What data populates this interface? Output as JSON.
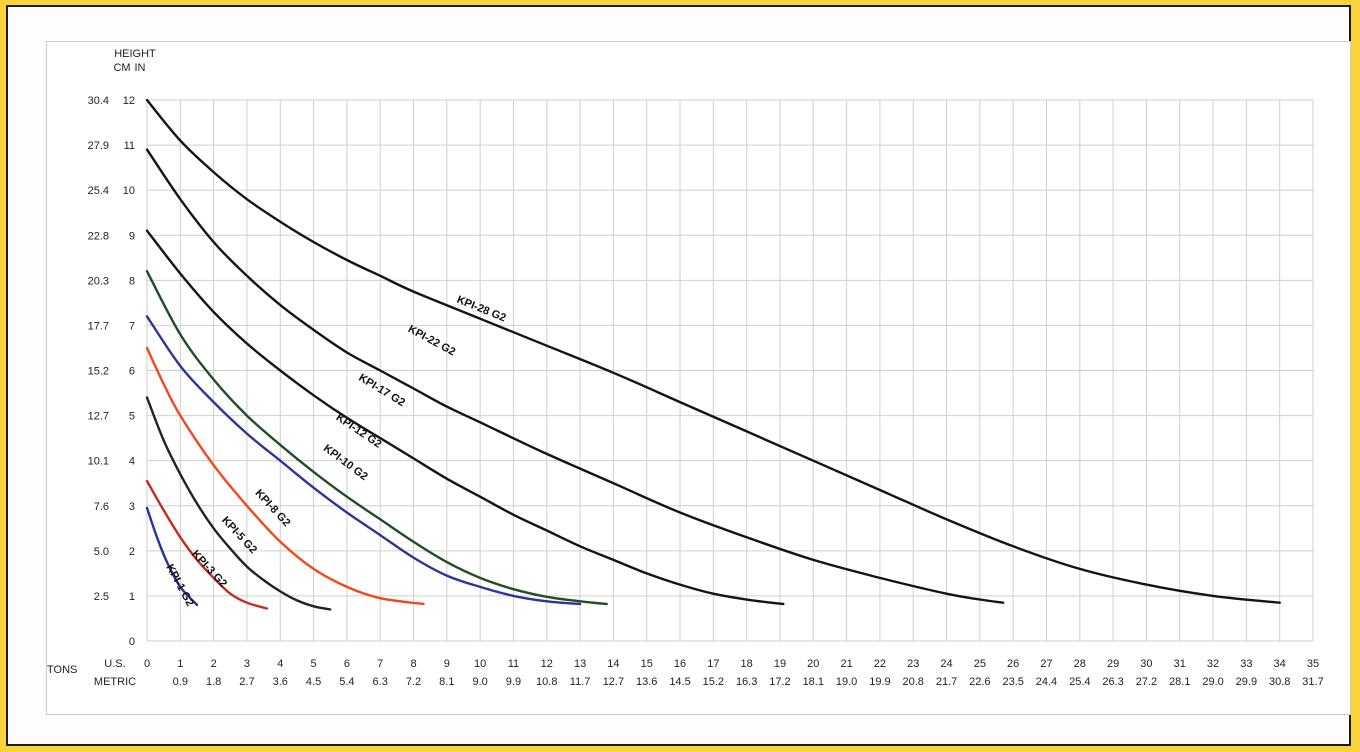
{
  "chart_data": {
    "type": "line",
    "y_header": "HEIGHT",
    "y_units": [
      "CM",
      "IN"
    ],
    "y_ticks_in": [
      0,
      1,
      2,
      3,
      4,
      5,
      6,
      7,
      8,
      9,
      10,
      11,
      12
    ],
    "y_ticks_cm": [
      "",
      "2.5",
      "5.0",
      "7.6",
      "10.1",
      "12.7",
      "15.2",
      "17.7",
      "20.3",
      "22.8",
      "25.4",
      "27.9",
      "30.4"
    ],
    "x_title": "TONS",
    "x_row_labels": [
      "U.S.",
      "METRIC"
    ],
    "x_ticks_us": [
      0,
      1,
      2,
      3,
      4,
      5,
      6,
      7,
      8,
      9,
      10,
      11,
      12,
      13,
      14,
      15,
      16,
      17,
      18,
      19,
      20,
      21,
      22,
      23,
      24,
      25,
      26,
      27,
      28,
      29,
      30,
      31,
      32,
      33,
      34,
      35
    ],
    "x_ticks_metric": [
      "",
      "0.9",
      "1.8",
      "2.7",
      "3.6",
      "4.5",
      "5.4",
      "6.3",
      "7.2",
      "8.1",
      "9.0",
      "9.9",
      "10.8",
      "11.7",
      "12.7",
      "13.6",
      "14.5",
      "15.2",
      "16.3",
      "17.2",
      "18.1",
      "19.0",
      "19.9",
      "20.8",
      "21.7",
      "22.6",
      "23.5",
      "24.4",
      "25.4",
      "26.3",
      "27.2",
      "28.1",
      "29.0",
      "29.9",
      "30.8",
      "31.7"
    ],
    "xlim": [
      0,
      35
    ],
    "ylim": [
      0,
      12
    ],
    "grid": true,
    "series": [
      {
        "name": "KPI-1 G2",
        "color": "#2b2f9e",
        "points": [
          [
            0,
            2.95
          ],
          [
            0.3,
            2.3
          ],
          [
            0.6,
            1.75
          ],
          [
            1.0,
            1.2
          ],
          [
            1.5,
            0.8
          ]
        ],
        "label_at": [
          0.9,
          1.2
        ]
      },
      {
        "name": "KPI-3 G2",
        "color": "#c62b20",
        "points": [
          [
            0,
            3.55
          ],
          [
            0.5,
            2.9
          ],
          [
            1.0,
            2.3
          ],
          [
            1.5,
            1.8
          ],
          [
            2.0,
            1.4
          ],
          [
            2.5,
            1.05
          ],
          [
            3.0,
            0.85
          ],
          [
            3.6,
            0.72
          ]
        ],
        "label_at": [
          1.8,
          1.55
        ]
      },
      {
        "name": "KPI-5 G2",
        "color": "#222222",
        "points": [
          [
            0,
            5.4
          ],
          [
            0.5,
            4.45
          ],
          [
            1.0,
            3.7
          ],
          [
            1.5,
            3.05
          ],
          [
            2.0,
            2.5
          ],
          [
            2.5,
            2.05
          ],
          [
            3.0,
            1.65
          ],
          [
            3.5,
            1.35
          ],
          [
            4.0,
            1.1
          ],
          [
            4.5,
            0.9
          ],
          [
            5.0,
            0.77
          ],
          [
            5.5,
            0.7
          ]
        ],
        "label_at": [
          2.7,
          2.3
        ]
      },
      {
        "name": "KPI-8 G2",
        "color": "#ef4a1c",
        "points": [
          [
            0,
            6.5
          ],
          [
            0.5,
            5.7
          ],
          [
            1.0,
            5.0
          ],
          [
            2.0,
            3.9
          ],
          [
            3.0,
            3.0
          ],
          [
            4.0,
            2.2
          ],
          [
            5.0,
            1.6
          ],
          [
            6.0,
            1.2
          ],
          [
            7.0,
            0.95
          ],
          [
            8.3,
            0.82
          ]
        ],
        "label_at": [
          3.7,
          2.9
        ]
      },
      {
        "name": "KPI-10 G2",
        "color": "#2e3499",
        "points": [
          [
            0,
            7.2
          ],
          [
            1.0,
            6.1
          ],
          [
            2.0,
            5.3
          ],
          [
            3.0,
            4.6
          ],
          [
            4.0,
            4.0
          ],
          [
            5.0,
            3.4
          ],
          [
            6.0,
            2.85
          ],
          [
            7.0,
            2.35
          ],
          [
            8.0,
            1.85
          ],
          [
            9.0,
            1.45
          ],
          [
            10.0,
            1.2
          ],
          [
            11.0,
            1.0
          ],
          [
            12.0,
            0.88
          ],
          [
            13.0,
            0.82
          ]
        ],
        "label_at": [
          5.9,
          3.9
        ]
      },
      {
        "name": "KPI-12 G2",
        "color": "#214d25",
        "points": [
          [
            0,
            8.2
          ],
          [
            1.0,
            6.8
          ],
          [
            2.0,
            5.8
          ],
          [
            3.0,
            5.0
          ],
          [
            4.0,
            4.35
          ],
          [
            5.0,
            3.75
          ],
          [
            6.0,
            3.2
          ],
          [
            7.0,
            2.7
          ],
          [
            8.0,
            2.2
          ],
          [
            9.0,
            1.75
          ],
          [
            10.0,
            1.4
          ],
          [
            11.0,
            1.15
          ],
          [
            12.0,
            0.98
          ],
          [
            13.0,
            0.88
          ],
          [
            13.8,
            0.82
          ]
        ],
        "label_at": [
          6.3,
          4.6
        ]
      },
      {
        "name": "KPI-17 G2",
        "color": "#141414",
        "points": [
          [
            0,
            9.1
          ],
          [
            1.0,
            8.15
          ],
          [
            2.0,
            7.3
          ],
          [
            3.0,
            6.6
          ],
          [
            4.0,
            6.0
          ],
          [
            5.0,
            5.45
          ],
          [
            6.0,
            4.95
          ],
          [
            7.0,
            4.5
          ],
          [
            8.0,
            4.05
          ],
          [
            9.0,
            3.6
          ],
          [
            10.0,
            3.2
          ],
          [
            11.0,
            2.8
          ],
          [
            12.0,
            2.45
          ],
          [
            13.0,
            2.1
          ],
          [
            14.0,
            1.8
          ],
          [
            15.0,
            1.5
          ],
          [
            16.0,
            1.25
          ],
          [
            17.0,
            1.05
          ],
          [
            18.0,
            0.92
          ],
          [
            19.1,
            0.82
          ]
        ],
        "label_at": [
          7.0,
          5.5
        ]
      },
      {
        "name": "KPI-22 G2",
        "color": "#141414",
        "points": [
          [
            0,
            10.9
          ],
          [
            1.0,
            9.8
          ],
          [
            2.0,
            8.85
          ],
          [
            3.0,
            8.1
          ],
          [
            4.0,
            7.45
          ],
          [
            5.0,
            6.9
          ],
          [
            6.0,
            6.4
          ],
          [
            7.0,
            6.0
          ],
          [
            8.0,
            5.6
          ],
          [
            9.0,
            5.2
          ],
          [
            10.0,
            4.85
          ],
          [
            12.0,
            4.15
          ],
          [
            14.0,
            3.5
          ],
          [
            16.0,
            2.85
          ],
          [
            18.0,
            2.3
          ],
          [
            20.0,
            1.8
          ],
          [
            22.0,
            1.4
          ],
          [
            24.0,
            1.05
          ],
          [
            25.0,
            0.92
          ],
          [
            25.7,
            0.85
          ]
        ],
        "label_at": [
          8.5,
          6.6
        ]
      },
      {
        "name": "KPI-28 G2",
        "color": "#141414",
        "points": [
          [
            0,
            12.0
          ],
          [
            1.0,
            11.1
          ],
          [
            2.0,
            10.4
          ],
          [
            3.0,
            9.8
          ],
          [
            4.0,
            9.3
          ],
          [
            5.0,
            8.85
          ],
          [
            6.0,
            8.45
          ],
          [
            7.0,
            8.1
          ],
          [
            8.0,
            7.75
          ],
          [
            10.0,
            7.15
          ],
          [
            12.0,
            6.55
          ],
          [
            14.0,
            5.95
          ],
          [
            16.0,
            5.3
          ],
          [
            18.0,
            4.65
          ],
          [
            20.0,
            4.0
          ],
          [
            22.0,
            3.35
          ],
          [
            24.0,
            2.7
          ],
          [
            26.0,
            2.1
          ],
          [
            28.0,
            1.6
          ],
          [
            30.0,
            1.25
          ],
          [
            32.0,
            1.0
          ],
          [
            34.0,
            0.85
          ]
        ],
        "label_at": [
          10.0,
          7.3
        ]
      }
    ]
  }
}
